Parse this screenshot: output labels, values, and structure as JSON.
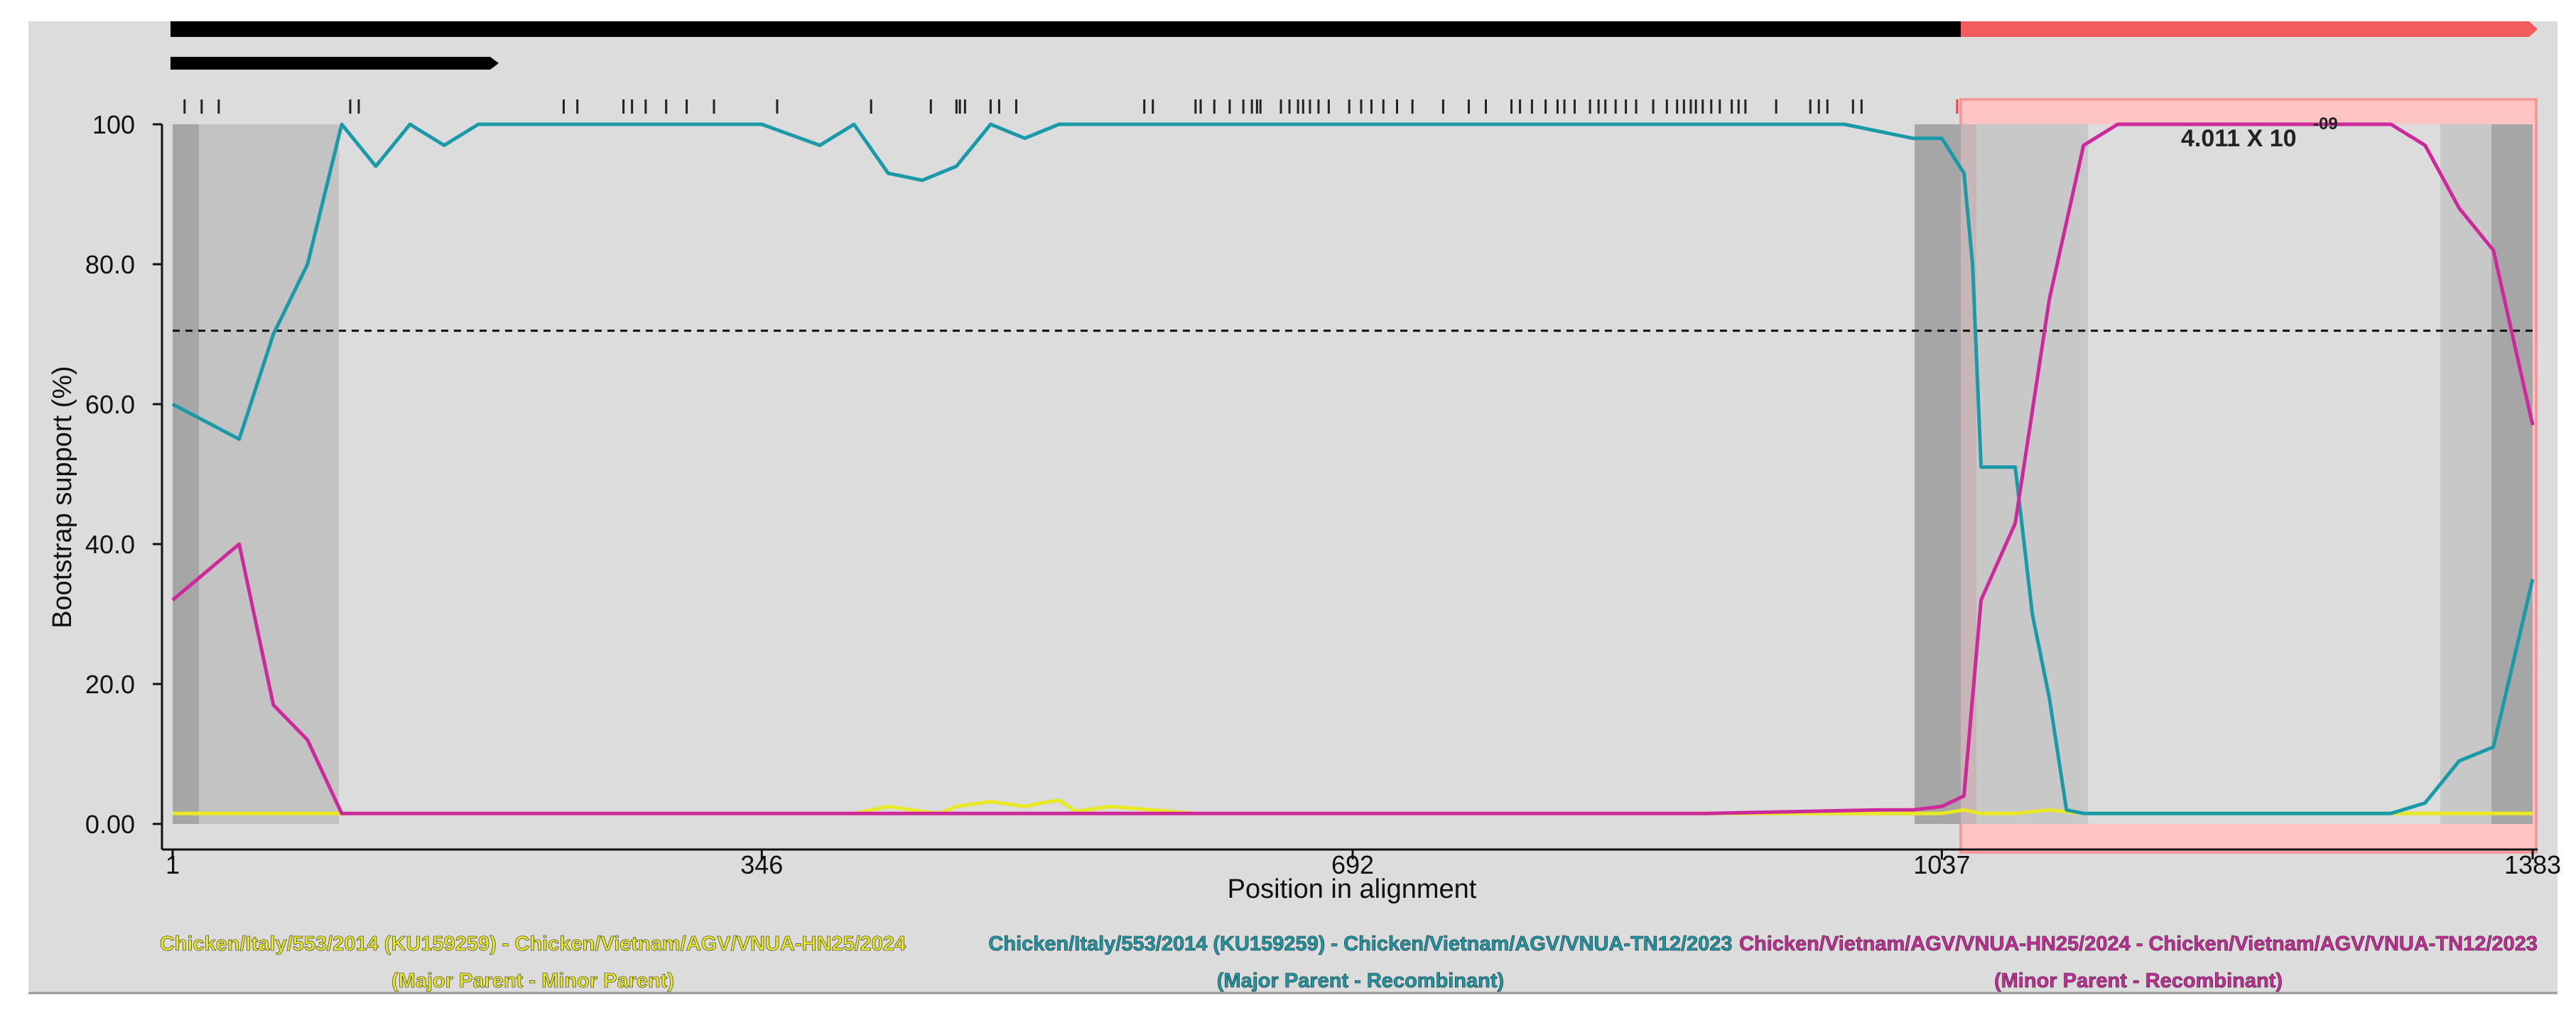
{
  "chart_data": {
    "type": "line",
    "xlabel": "Position in alignment",
    "ylabel": "Bootstrap support (%)",
    "x_ticks": [
      "1",
      "346",
      "692",
      "1037",
      "1383"
    ],
    "y_ticks": [
      "0.00",
      "20.0",
      "40.0",
      "60.0",
      "80.0",
      "100"
    ],
    "xlim": [
      1,
      1383
    ],
    "ylim": [
      0,
      100
    ],
    "threshold": 70.5,
    "p_value": {
      "mantissa": "4.011 X 10",
      "exponent": "-09"
    },
    "recombination_region": [
      1037,
      1383
    ],
    "series": [
      {
        "color": "#e8e825",
        "x": [
          1,
          100,
          200,
          346,
          400,
          420,
          440,
          450,
          460,
          480,
          500,
          510,
          520,
          530,
          550,
          600,
          700,
          800,
          900,
          1000,
          1037,
          1050,
          1060,
          1080,
          1100,
          1120,
          1200,
          1300,
          1383
        ],
        "y": [
          1.5,
          1.5,
          1.5,
          1.5,
          1.5,
          2.5,
          1.8,
          1.5,
          2.5,
          3.2,
          2.5,
          3.0,
          3.4,
          1.8,
          2.5,
          1.5,
          1.5,
          1.5,
          1.5,
          1.5,
          1.5,
          2.0,
          1.5,
          1.5,
          2.0,
          1.5,
          1.5,
          1.5,
          1.5
        ]
      },
      {
        "color": "#1a9aa8",
        "x": [
          1,
          40,
          60,
          80,
          100,
          120,
          140,
          160,
          180,
          200,
          250,
          300,
          346,
          380,
          400,
          420,
          440,
          460,
          480,
          500,
          520,
          600,
          700,
          800,
          900,
          980,
          1020,
          1037,
          1050,
          1055,
          1060,
          1070,
          1080,
          1090,
          1100,
          1110,
          1120,
          1300,
          1320,
          1340,
          1360,
          1383
        ],
        "y": [
          60,
          55,
          70,
          80,
          100,
          94,
          100,
          97,
          100,
          100,
          100,
          100,
          100,
          97,
          100,
          93,
          92,
          94,
          100,
          98,
          100,
          100,
          100,
          100,
          100,
          100,
          98,
          98,
          93,
          80,
          51,
          51,
          51,
          30,
          18,
          2,
          1.5,
          1.5,
          3,
          9,
          11,
          35
        ]
      },
      {
        "color": "#cc2a9c",
        "x": [
          1,
          40,
          60,
          80,
          100,
          120,
          200,
          346,
          692,
          900,
          1000,
          1020,
          1037,
          1050,
          1060,
          1080,
          1100,
          1120,
          1140,
          1300,
          1320,
          1340,
          1360,
          1383
        ],
        "y": [
          32,
          40,
          17,
          12,
          1.5,
          1.5,
          1.5,
          1.5,
          1.5,
          1.5,
          2,
          2,
          2.5,
          4,
          32,
          43,
          75,
          97,
          100,
          100,
          97,
          88,
          82,
          57
        ]
      }
    ],
    "legend": [
      {
        "color": "#e8e825",
        "line1": "Chicken/Italy/553/2014 (KU159259) - Chicken/Vietnam/AGV/VNUA-HN25/2024",
        "line2": "(Major Parent - Minor Parent)"
      },
      {
        "color": "#1a9aa8",
        "line1": "Chicken/Italy/553/2014 (KU159259) - Chicken/Vietnam/AGV/VNUA-TN12/2023",
        "line2": "(Major Parent - Recombinant)"
      },
      {
        "color": "#cc2a9c",
        "line1": "Chicken/Vietnam/AGV/VNUA-HN25/2024 - Chicken/Vietnam/AGV/VNUA-TN12/2023",
        "line2": "(Minor Parent - Recombinant)"
      }
    ],
    "legend_placement": "bottom",
    "colors": {
      "plot_background": "#dcdcdc",
      "recombination_highlight": "#ffc4c4",
      "recombination_bar": "#f25c5c",
      "sequence_bar": "#000000"
    },
    "informative_sites": [
      8,
      18,
      28,
      105,
      110,
      230,
      238,
      265,
      270,
      278,
      290,
      302,
      318,
      355,
      410,
      445,
      460,
      462,
      465,
      480,
      485,
      495,
      570,
      575,
      600,
      603,
      611,
      620,
      628,
      633,
      636,
      638,
      650,
      655,
      660,
      663,
      667,
      672,
      678,
      690,
      697,
      703,
      710,
      718,
      727,
      745,
      760,
      770,
      785,
      790,
      797,
      805,
      812,
      816,
      822,
      831,
      836,
      840,
      846,
      852,
      858,
      868,
      876,
      882,
      886,
      890,
      893,
      897,
      902,
      907,
      914,
      918,
      922,
      940,
      960,
      965,
      970,
      985,
      990,
      1046,
      1058,
      1066,
      1075,
      1085,
      1100,
      1110,
      1118,
      1125,
      1135,
      1160,
      1180,
      1205,
      1212,
      1228,
      1240,
      1255,
      1272,
      1300,
      1378,
      1380
    ]
  }
}
